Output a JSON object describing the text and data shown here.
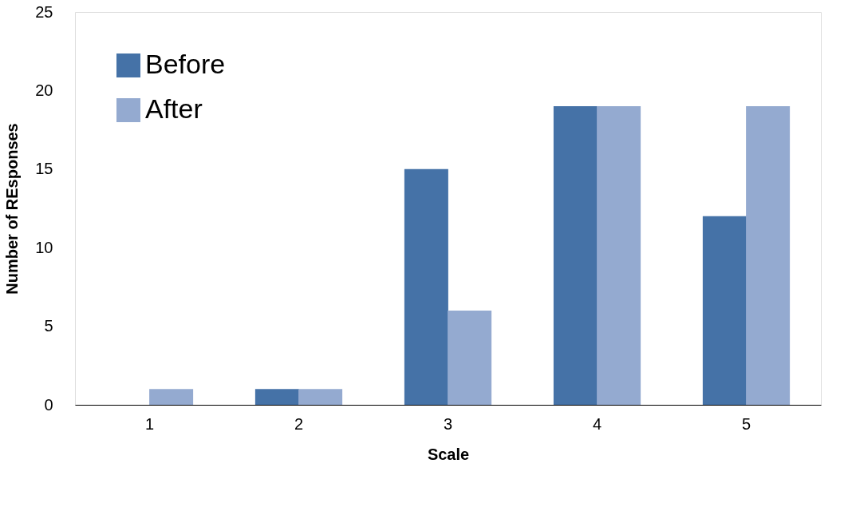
{
  "chart_data": {
    "type": "bar",
    "xlabel": "Scale",
    "ylabel": "Number of REsponses",
    "categories": [
      "1",
      "2",
      "3",
      "4",
      "5"
    ],
    "series": [
      {
        "name": "Before",
        "color": "#4572a7",
        "values": [
          0,
          1,
          15,
          19,
          12
        ]
      },
      {
        "name": "After",
        "color": "#94aad0",
        "values": [
          1,
          1,
          6,
          19,
          19
        ]
      }
    ],
    "ylim": [
      0,
      25
    ],
    "yticks": [
      0,
      5,
      10,
      15,
      20,
      25
    ],
    "grid": false,
    "legend": "top left"
  }
}
